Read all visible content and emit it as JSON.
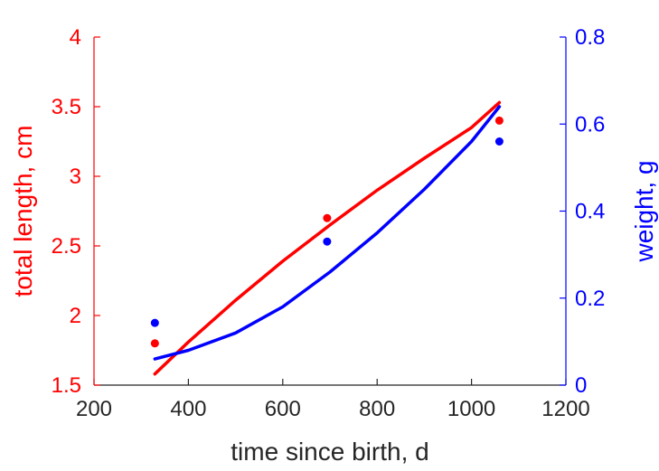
{
  "chart_data": {
    "type": "line",
    "title": "",
    "xlabel": "time since birth, d",
    "xlim": [
      200,
      1200
    ],
    "xticks": [
      200,
      400,
      600,
      800,
      1000,
      1200
    ],
    "axes": {
      "left": {
        "label": "total length, cm",
        "color": "#ff0000",
        "ylim": [
          1.5,
          4
        ],
        "ticks": [
          1.5,
          2,
          2.5,
          3,
          3.5,
          4
        ],
        "tick_labels": [
          "1.5",
          "2",
          "2.5",
          "3",
          "3.5",
          "4"
        ]
      },
      "right": {
        "label": "weight, g",
        "color": "#0000ff",
        "ylim": [
          0,
          0.8
        ],
        "ticks": [
          0,
          0.2,
          0.4,
          0.6,
          0.8
        ],
        "tick_labels": [
          "0",
          "0.2",
          "0.4",
          "0.6",
          "0.8"
        ]
      }
    },
    "series": [
      {
        "kind": "points",
        "axis": "left",
        "color": "#ff0000",
        "x": [
          329,
          694,
          1059
        ],
        "y": [
          1.8,
          2.7,
          3.4
        ]
      },
      {
        "kind": "points",
        "axis": "right",
        "color": "#0000ff",
        "x": [
          329,
          694,
          1059
        ],
        "y": [
          0.143,
          0.33,
          0.56
        ]
      },
      {
        "kind": "curve",
        "axis": "left",
        "color": "#ff0000",
        "x": [
          329,
          400,
          500,
          600,
          700,
          800,
          900,
          1000,
          1059
        ],
        "y": [
          1.58,
          1.81,
          2.11,
          2.39,
          2.65,
          2.9,
          3.13,
          3.35,
          3.53
        ]
      },
      {
        "kind": "curve",
        "axis": "right",
        "color": "#0000ff",
        "x": [
          329,
          400,
          500,
          600,
          700,
          800,
          900,
          1000,
          1059
        ],
        "y": [
          0.06,
          0.08,
          0.12,
          0.18,
          0.26,
          0.35,
          0.45,
          0.56,
          0.64
        ]
      }
    ],
    "grid": false,
    "legend": "none"
  }
}
